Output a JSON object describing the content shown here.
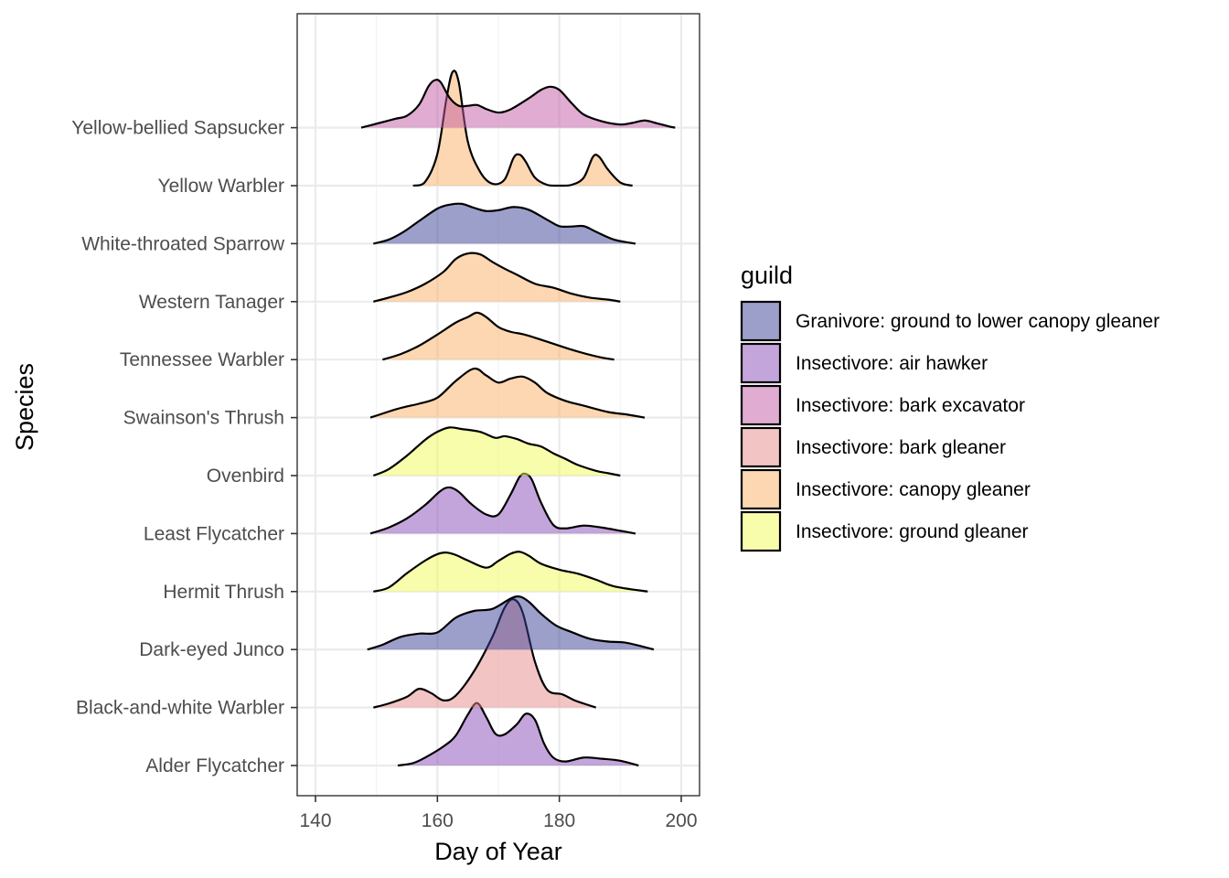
{
  "chart_data": {
    "type": "ridgeline",
    "title": "",
    "xlabel": "Day of Year",
    "ylabel": "Species",
    "xlim": [
      137,
      203
    ],
    "xticks": [
      140,
      160,
      180,
      200
    ],
    "grid": true,
    "legend_position": "right",
    "legend_title": "guild",
    "guilds": [
      {
        "name": "Granivore: ground to lower canopy gleaner",
        "color": "#3b3f98"
      },
      {
        "name": "Insectivore: air hawker",
        "color": "#8a4cb8"
      },
      {
        "name": "Insectivore: bark excavator",
        "color": "#c15aa4"
      },
      {
        "name": "Insectivore: bark gleaner",
        "color": "#e58b89"
      },
      {
        "name": "Insectivore: canopy gleaner",
        "color": "#fbb064"
      },
      {
        "name": "Insectivore: ground gleaner",
        "color": "#f1fb5a"
      }
    ],
    "series": [
      {
        "name": "Alder Flycatcher",
        "guild": "Insectivore: air hawker",
        "points": [
          [
            153.5,
            0
          ],
          [
            156,
            0.06
          ],
          [
            158,
            0.2
          ],
          [
            161,
            0.48
          ],
          [
            163,
            0.75
          ],
          [
            165,
            1.28
          ],
          [
            166.5,
            1.57
          ],
          [
            168,
            1.22
          ],
          [
            169.5,
            0.8
          ],
          [
            171,
            0.78
          ],
          [
            173,
            1.03
          ],
          [
            174.5,
            1.3
          ],
          [
            176,
            1.15
          ],
          [
            177.5,
            0.55
          ],
          [
            179,
            0.2
          ],
          [
            181,
            0.1
          ],
          [
            184,
            0.2
          ],
          [
            187,
            0.17
          ],
          [
            190,
            0.12
          ],
          [
            193,
            0
          ]
        ]
      },
      {
        "name": "Black-and-white Warbler",
        "guild": "Insectivore: bark gleaner",
        "points": [
          [
            149.5,
            0
          ],
          [
            152,
            0.1
          ],
          [
            155,
            0.27
          ],
          [
            157,
            0.47
          ],
          [
            159,
            0.36
          ],
          [
            161,
            0.18
          ],
          [
            163,
            0.3
          ],
          [
            166,
            0.91
          ],
          [
            169,
            1.77
          ],
          [
            171,
            2.5
          ],
          [
            172.5,
            2.72
          ],
          [
            174,
            2.38
          ],
          [
            176,
            1.15
          ],
          [
            178,
            0.45
          ],
          [
            180.5,
            0.33
          ],
          [
            182.5,
            0.18
          ],
          [
            184,
            0.1
          ],
          [
            186,
            0
          ]
        ]
      },
      {
        "name": "Dark-eyed Junco",
        "guild": "Granivore: ground to lower canopy gleaner",
        "points": [
          [
            148.5,
            0
          ],
          [
            151,
            0.12
          ],
          [
            154,
            0.32
          ],
          [
            157,
            0.4
          ],
          [
            160,
            0.43
          ],
          [
            163,
            0.8
          ],
          [
            166,
            0.97
          ],
          [
            169,
            1.02
          ],
          [
            172,
            1.28
          ],
          [
            173.5,
            1.33
          ],
          [
            175,
            1.2
          ],
          [
            177,
            0.9
          ],
          [
            179.5,
            0.6
          ],
          [
            182,
            0.44
          ],
          [
            185,
            0.27
          ],
          [
            188,
            0.2
          ],
          [
            191,
            0.17
          ],
          [
            195.5,
            0
          ]
        ]
      },
      {
        "name": "Hermit Thrush",
        "guild": "Insectivore: ground gleaner",
        "points": [
          [
            149.5,
            0
          ],
          [
            152,
            0.1
          ],
          [
            155,
            0.46
          ],
          [
            158,
            0.78
          ],
          [
            160,
            0.94
          ],
          [
            161.5,
            0.98
          ],
          [
            163,
            0.92
          ],
          [
            165,
            0.78
          ],
          [
            168,
            0.6
          ],
          [
            170,
            0.77
          ],
          [
            172,
            0.95
          ],
          [
            173.5,
            1.0
          ],
          [
            175,
            0.9
          ],
          [
            177,
            0.7
          ],
          [
            180,
            0.55
          ],
          [
            183,
            0.45
          ],
          [
            186,
            0.3
          ],
          [
            189,
            0.13
          ],
          [
            194.5,
            0
          ]
        ]
      },
      {
        "name": "Least Flycatcher",
        "guild": "Insectivore: air hawker",
        "points": [
          [
            149,
            0
          ],
          [
            152,
            0.15
          ],
          [
            155,
            0.38
          ],
          [
            158,
            0.72
          ],
          [
            160.5,
            1.07
          ],
          [
            162,
            1.16
          ],
          [
            163.5,
            1.05
          ],
          [
            165.5,
            0.75
          ],
          [
            168,
            0.48
          ],
          [
            170,
            0.48
          ],
          [
            172,
            0.98
          ],
          [
            173.5,
            1.43
          ],
          [
            174.5,
            1.5
          ],
          [
            175.5,
            1.35
          ],
          [
            177,
            0.78
          ],
          [
            179,
            0.22
          ],
          [
            181,
            0.13
          ],
          [
            184,
            0.2
          ],
          [
            187,
            0.15
          ],
          [
            190,
            0.07
          ],
          [
            192.5,
            0
          ]
        ]
      },
      {
        "name": "Ovenbird",
        "guild": "Insectivore: ground gleaner",
        "points": [
          [
            149.5,
            0
          ],
          [
            152,
            0.16
          ],
          [
            155,
            0.5
          ],
          [
            158,
            0.9
          ],
          [
            160,
            1.1
          ],
          [
            162,
            1.21
          ],
          [
            164,
            1.17
          ],
          [
            167,
            1.1
          ],
          [
            169.5,
            0.95
          ],
          [
            171,
            0.99
          ],
          [
            173,
            0.92
          ],
          [
            175,
            0.8
          ],
          [
            177,
            0.73
          ],
          [
            179,
            0.56
          ],
          [
            181,
            0.42
          ],
          [
            183,
            0.27
          ],
          [
            186,
            0.12
          ],
          [
            188,
            0.06
          ],
          [
            190,
            0
          ]
        ]
      },
      {
        "name": "Swainson's Thrush",
        "guild": "Insectivore: canopy gleaner",
        "points": [
          [
            149,
            0
          ],
          [
            151,
            0.1
          ],
          [
            153,
            0.2
          ],
          [
            155,
            0.28
          ],
          [
            157,
            0.35
          ],
          [
            160,
            0.5
          ],
          [
            163,
            0.92
          ],
          [
            166,
            1.23
          ],
          [
            168,
            1.06
          ],
          [
            170,
            0.88
          ],
          [
            172,
            0.98
          ],
          [
            174,
            1.03
          ],
          [
            176,
            0.88
          ],
          [
            178,
            0.62
          ],
          [
            181,
            0.42
          ],
          [
            184,
            0.3
          ],
          [
            188,
            0.14
          ],
          [
            191,
            0.08
          ],
          [
            194,
            0
          ]
        ]
      },
      {
        "name": "Tennessee Warbler",
        "guild": "Insectivore: canopy gleaner",
        "points": [
          [
            151,
            0
          ],
          [
            154,
            0.14
          ],
          [
            157,
            0.35
          ],
          [
            160,
            0.63
          ],
          [
            163,
            0.93
          ],
          [
            165,
            1.07
          ],
          [
            166.5,
            1.18
          ],
          [
            168,
            1.07
          ],
          [
            170,
            0.82
          ],
          [
            172,
            0.7
          ],
          [
            174,
            0.64
          ],
          [
            176,
            0.55
          ],
          [
            179,
            0.4
          ],
          [
            182,
            0.25
          ],
          [
            185,
            0.12
          ],
          [
            187,
            0.05
          ],
          [
            189,
            0
          ]
        ]
      },
      {
        "name": "Western Tanager",
        "guild": "Insectivore: canopy gleaner",
        "points": [
          [
            149.5,
            0
          ],
          [
            152,
            0.1
          ],
          [
            155,
            0.24
          ],
          [
            158,
            0.45
          ],
          [
            161,
            0.75
          ],
          [
            163,
            1.07
          ],
          [
            165,
            1.21
          ],
          [
            167,
            1.19
          ],
          [
            169,
            1.0
          ],
          [
            171,
            0.83
          ],
          [
            173,
            0.68
          ],
          [
            176,
            0.45
          ],
          [
            179,
            0.35
          ],
          [
            182,
            0.2
          ],
          [
            185,
            0.1
          ],
          [
            188,
            0.05
          ],
          [
            190,
            0
          ]
        ]
      },
      {
        "name": "White-throated Sparrow",
        "guild": "Granivore: ground to lower canopy gleaner",
        "points": [
          [
            149.5,
            0
          ],
          [
            152,
            0.1
          ],
          [
            154.5,
            0.3
          ],
          [
            157,
            0.57
          ],
          [
            160,
            0.88
          ],
          [
            162,
            0.98
          ],
          [
            164,
            1.0
          ],
          [
            166,
            0.9
          ],
          [
            168,
            0.82
          ],
          [
            170,
            0.84
          ],
          [
            172.5,
            0.92
          ],
          [
            175,
            0.85
          ],
          [
            178,
            0.6
          ],
          [
            180,
            0.44
          ],
          [
            182,
            0.43
          ],
          [
            184,
            0.44
          ],
          [
            186,
            0.3
          ],
          [
            189,
            0.1
          ],
          [
            192.5,
            0
          ]
        ]
      },
      {
        "name": "Yellow Warbler",
        "guild": "Insectivore: canopy gleaner",
        "segments": [
          [
            [
              156,
              0
            ],
            [
              158,
              0.1
            ],
            [
              160,
              0.8
            ],
            [
              161.5,
              2.2
            ],
            [
              162.5,
              2.86
            ],
            [
              163.5,
              2.6
            ],
            [
              165,
              1.1
            ],
            [
              167,
              0.35
            ],
            [
              169,
              0.05
            ],
            [
              171,
              0.15
            ],
            [
              172.5,
              0.7
            ],
            [
              173.5,
              0.78
            ],
            [
              174.5,
              0.6
            ],
            [
              176,
              0.2
            ],
            [
              178,
              0.02
            ],
            [
              180,
              0
            ]
          ],
          [
            [
              180,
              0
            ],
            [
              182,
              0.02
            ],
            [
              184,
              0.2
            ],
            [
              185.5,
              0.72
            ],
            [
              186.5,
              0.73
            ],
            [
              188,
              0.4
            ],
            [
              190,
              0.08
            ],
            [
              192,
              0
            ]
          ]
        ]
      },
      {
        "name": "Yellow-bellied Sapsucker",
        "guild": "Insectivore: bark excavator",
        "points": [
          [
            147.5,
            0
          ],
          [
            150,
            0.1
          ],
          [
            153,
            0.22
          ],
          [
            155,
            0.3
          ],
          [
            157,
            0.58
          ],
          [
            158.5,
            1.03
          ],
          [
            159.5,
            1.19
          ],
          [
            160.5,
            1.15
          ],
          [
            162,
            0.75
          ],
          [
            163.5,
            0.55
          ],
          [
            165,
            0.55
          ],
          [
            166.5,
            0.57
          ],
          [
            168,
            0.47
          ],
          [
            170,
            0.38
          ],
          [
            172,
            0.46
          ],
          [
            175,
            0.74
          ],
          [
            177,
            0.95
          ],
          [
            178.5,
            1.03
          ],
          [
            180,
            0.95
          ],
          [
            182,
            0.62
          ],
          [
            184,
            0.33
          ],
          [
            187,
            0.16
          ],
          [
            190,
            0.08
          ],
          [
            192,
            0.12
          ],
          [
            194,
            0.18
          ],
          [
            196,
            0.11
          ],
          [
            198,
            0.03
          ],
          [
            199,
            0
          ]
        ]
      }
    ]
  }
}
